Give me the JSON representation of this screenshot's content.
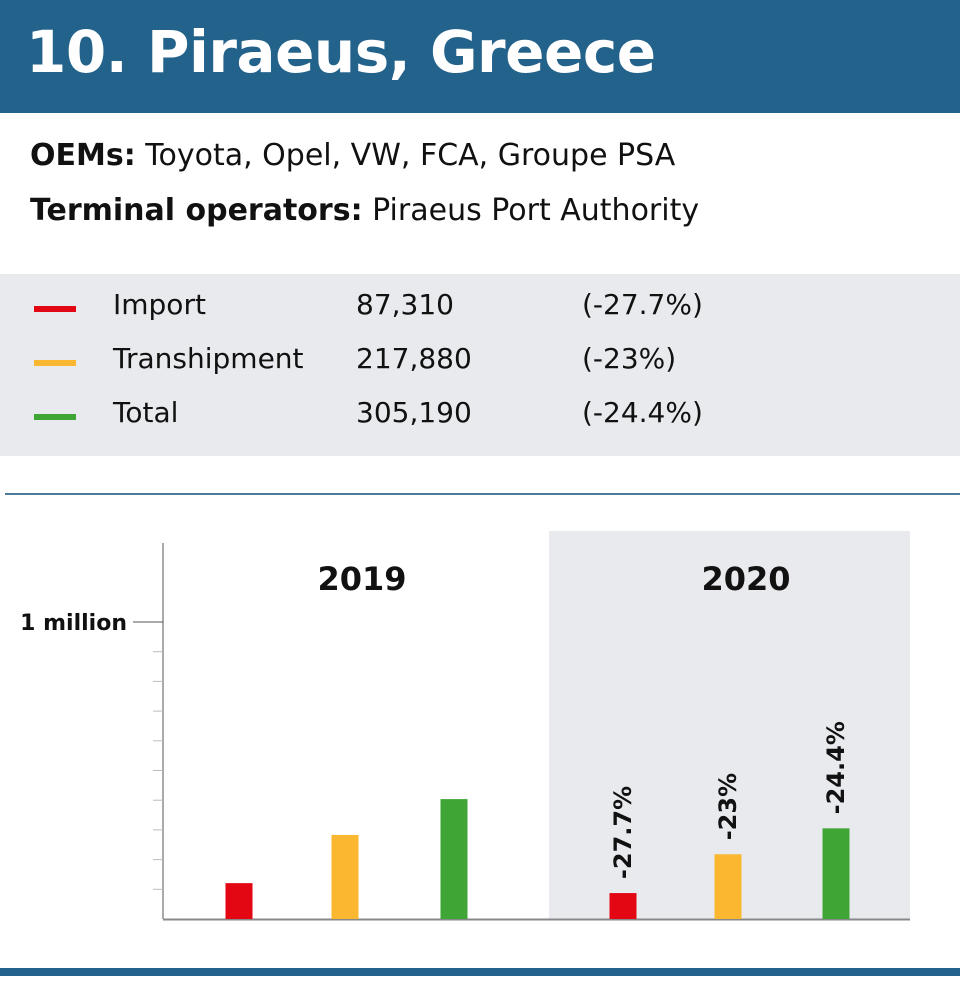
{
  "title": "10. Piraeus, Greece",
  "info": {
    "oems_label": "OEMs:",
    "oems_value": "Toyota, Opel, VW, FCA, Groupe PSA",
    "operators_label": "Terminal operators:",
    "operators_value": "Piraeus Port Authority"
  },
  "legend": [
    {
      "name": "Import",
      "value": "87,310",
      "change": "(-27.7%)",
      "color": "#e30613"
    },
    {
      "name": "Transhipment",
      "value": "217,880",
      "change": "(-23%)",
      "color": "#fbb72f"
    },
    {
      "name": "Total",
      "value": "305,190",
      "change": "(-24.4%)",
      "color": "#3fa535"
    }
  ],
  "chart_data": {
    "type": "bar",
    "categories": [
      "2019",
      "2020"
    ],
    "series": [
      {
        "name": "Import",
        "values": [
          120760,
          87310
        ],
        "color": "#e30613",
        "labels": [
          "",
          "-27.7%"
        ]
      },
      {
        "name": "Transhipment",
        "values": [
          282960,
          217880
        ],
        "color": "#fbb72f",
        "labels": [
          "",
          "-23%"
        ]
      },
      {
        "name": "Total",
        "values": [
          403690,
          305190
        ],
        "color": "#3fa535",
        "labels": [
          "",
          "-24.4%"
        ]
      }
    ],
    "ylim": [
      0,
      1270000
    ],
    "y_tick_label": "1 million",
    "y_tick_value": 1000000,
    "minor_tick_step": 100000,
    "highlight_category": "2020"
  }
}
